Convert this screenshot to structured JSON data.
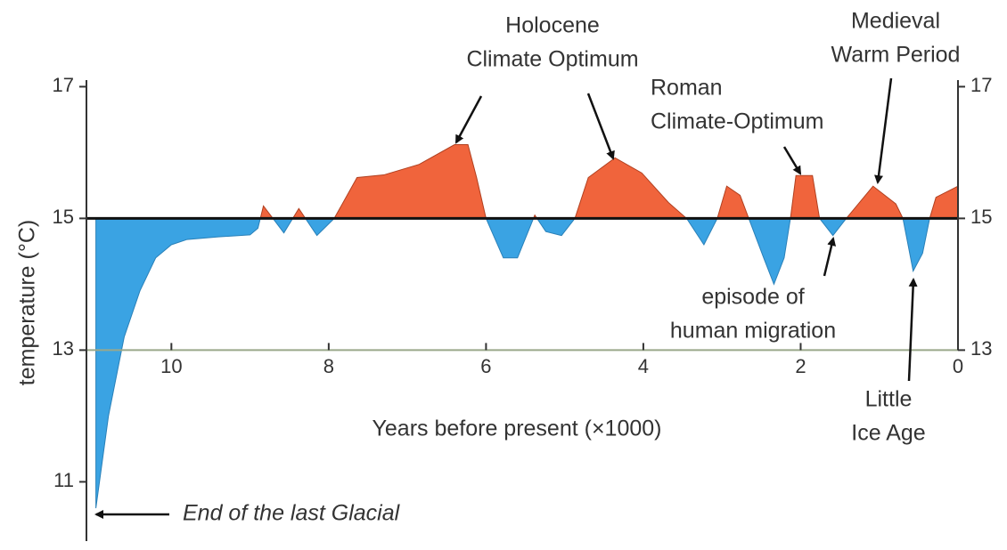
{
  "chart_data": {
    "type": "area",
    "ylabel": "temperature (°C)",
    "xlabel": "Years before present (×1000)",
    "x": [
      10.96,
      10.8,
      10.6,
      10.4,
      10.2,
      10.0,
      9.8,
      9.4,
      9.0,
      8.9,
      8.83,
      8.57,
      8.38,
      8.15,
      7.93,
      7.64,
      7.3,
      6.85,
      6.4,
      6.23,
      6.12,
      6.0,
      5.78,
      5.6,
      5.38,
      5.24,
      5.04,
      4.87,
      4.7,
      4.36,
      4.02,
      3.68,
      3.45,
      3.23,
      3.06,
      2.94,
      2.77,
      2.66,
      2.47,
      2.34,
      2.21,
      2.13,
      2.06,
      1.85,
      1.76,
      1.59,
      1.42,
      1.08,
      0.79,
      0.7,
      0.57,
      0.45,
      0.36,
      0.28,
      0
    ],
    "values": [
      10.6,
      12.0,
      13.2,
      13.9,
      14.4,
      14.6,
      14.68,
      14.72,
      14.75,
      14.85,
      15.19,
      14.78,
      15.15,
      14.74,
      15.0,
      15.62,
      15.66,
      15.82,
      16.12,
      16.12,
      15.62,
      15.0,
      14.4,
      14.4,
      15.05,
      14.8,
      14.74,
      15.0,
      15.62,
      15.92,
      15.69,
      15.24,
      15.0,
      14.6,
      15.0,
      15.49,
      15.35,
      15.0,
      14.4,
      14.0,
      14.4,
      15.0,
      15.65,
      15.65,
      15.0,
      14.74,
      15.0,
      15.49,
      15.22,
      15.0,
      14.2,
      14.47,
      15.0,
      15.32,
      15.49
    ],
    "above_color": "#f0643c",
    "below_color": "#3aa3e3",
    "baseline": 15,
    "xaxis_position": 13,
    "xlim": [
      11.08,
      0
    ],
    "xticks": [
      10,
      8,
      6,
      4,
      2,
      0
    ],
    "ylim": [
      10.1,
      17.1
    ],
    "yticks": [
      11,
      13,
      15,
      17
    ],
    "y2lim": [
      10.1,
      17.1
    ],
    "y2ticks": [
      13,
      15,
      17
    ],
    "annotations": [
      {
        "lines": [
          "Holocene",
          "Climate Optimum"
        ]
      },
      {
        "lines": [
          "Roman",
          "Climate-Optimum"
        ]
      },
      {
        "lines": [
          "Medieval",
          "Warm Period"
        ]
      },
      {
        "lines": [
          "episode of",
          "human migration"
        ]
      },
      {
        "lines": [
          "Little",
          "Ice Age"
        ]
      },
      {
        "lines": [
          "End of the last Glacial"
        ]
      }
    ]
  }
}
